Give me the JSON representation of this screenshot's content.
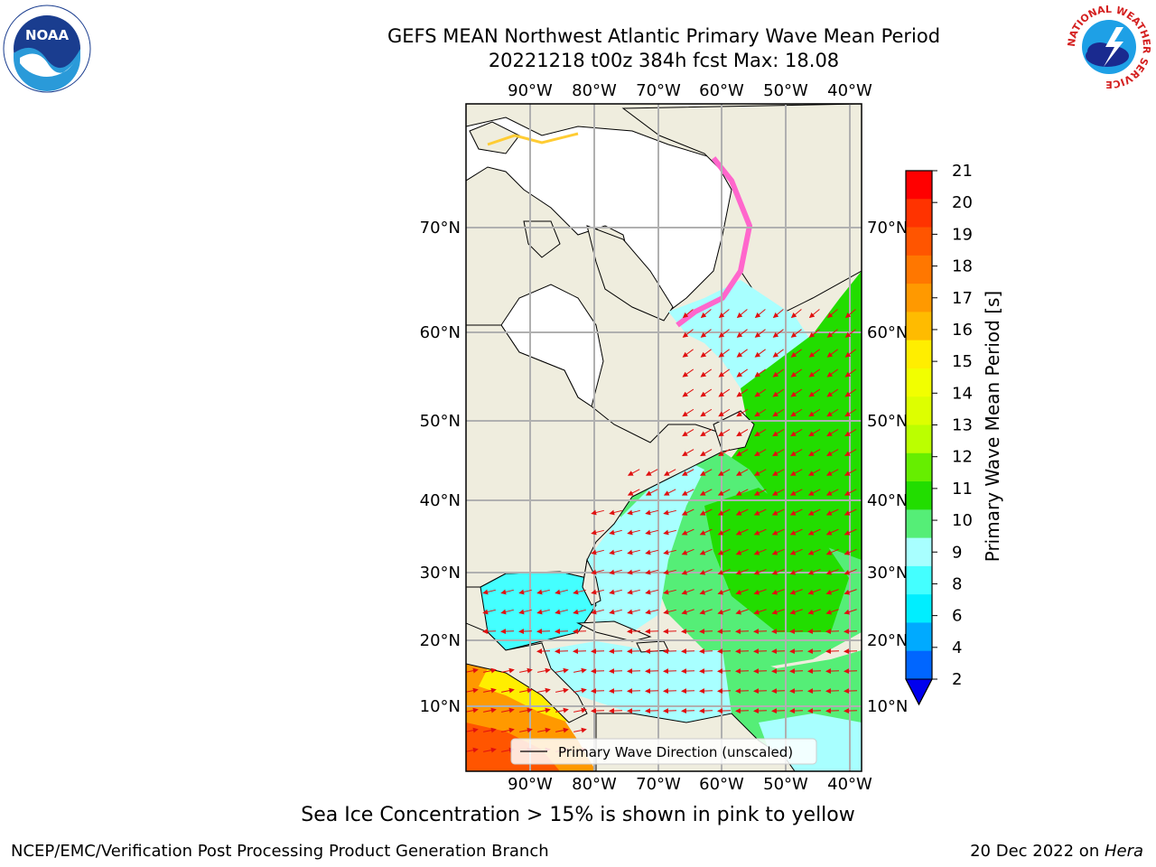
{
  "title_line1": "GEFS MEAN Northwest Atlantic Primary Wave Mean Period",
  "title_line2": "20221218 t00z 384h fcst   Max: 18.08",
  "lon_labels": [
    "90°W",
    "80°W",
    "70°W",
    "60°W",
    "50°W",
    "40°W"
  ],
  "lat_labels": [
    "70°N",
    "60°N",
    "50°N",
    "40°N",
    "30°N",
    "20°N",
    "10°N"
  ],
  "legend_label": "Primary Wave Direction (unscaled)",
  "colorbar": {
    "label": "Primary Wave Mean Period [s]",
    "ticks": [
      "21",
      "20",
      "19",
      "18",
      "17",
      "16",
      "15",
      "14",
      "13",
      "12",
      "11",
      "10",
      "9",
      "8",
      "6",
      "4",
      "2"
    ],
    "colors": [
      "#ff0000",
      "#ff3300",
      "#ff5500",
      "#ff7700",
      "#ff9900",
      "#ffbb00",
      "#ffee00",
      "#f2ff00",
      "#ddff00",
      "#bbff00",
      "#66ee00",
      "#22dd00",
      "#55ee77",
      "#a8ffff",
      "#44ffff",
      "#00eeff",
      "#00aaff",
      "#0066ff"
    ],
    "extend_color": "#0000ee"
  },
  "note": "Sea Ice Concentration > 15% is shown in pink to yellow",
  "footer_left": "NCEP/EMC/Verification Post Processing Product Generation Branch",
  "footer_date": "20 Dec 2022 on ",
  "footer_machine": "Hera",
  "logos": {
    "noaa": "NOAA",
    "nws_ring": "NATIONAL WEATHER SERVICE"
  }
}
